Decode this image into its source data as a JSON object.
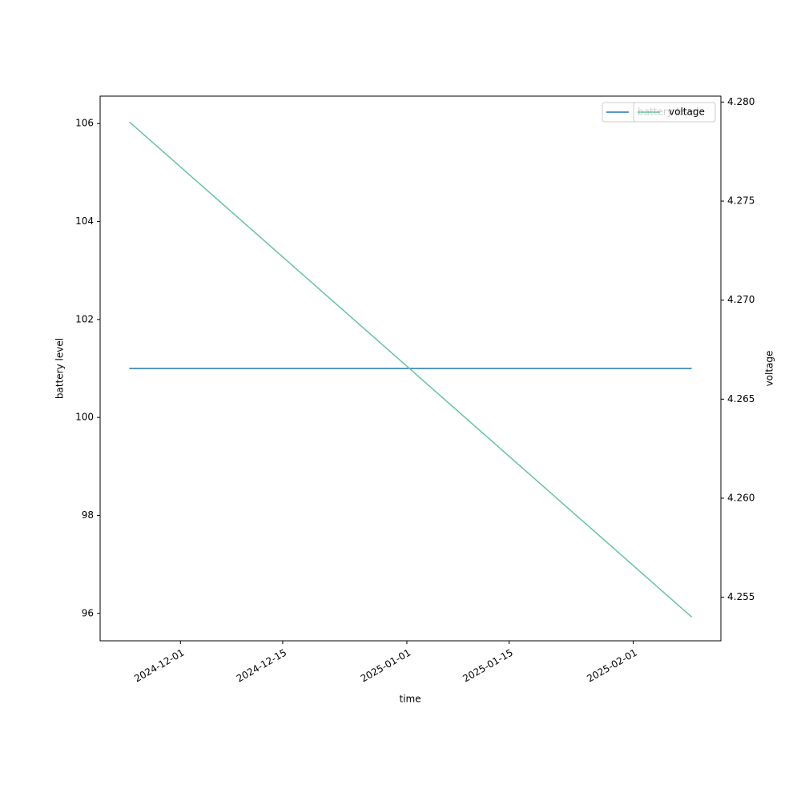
{
  "chart_data": {
    "type": "line",
    "xlabel": "time",
    "ylabel": "battery level",
    "y2label": "voltage",
    "x": [
      "2024-11-24",
      "2025-02-09"
    ],
    "xlim": [
      "2024-11-20",
      "2025-02-13"
    ],
    "xticks": [
      "2024-12-01",
      "2024-12-15",
      "2025-01-01",
      "2025-01-15",
      "2025-02-01"
    ],
    "ylim": [
      95.44,
      106.56
    ],
    "yticks": [
      96,
      98,
      100,
      102,
      104,
      106
    ],
    "y2lim": [
      4.2528,
      4.2803
    ],
    "y2ticks": [
      4.255,
      {
        "value": 4.26,
        "label": "4.260"
      },
      4.265,
      {
        "value": 4.27,
        "label": "4.270"
      },
      4.275,
      {
        "value": 4.28,
        "label": "4.280"
      }
    ],
    "series": [
      {
        "name": "battery level",
        "color": "#1f77b4",
        "values": [
          101,
          101
        ]
      },
      {
        "name": "voltage",
        "color": "#66c2a5",
        "values": [
          4.279,
          4.254
        ],
        "axis": "y2"
      }
    ],
    "legend": "upper right"
  }
}
